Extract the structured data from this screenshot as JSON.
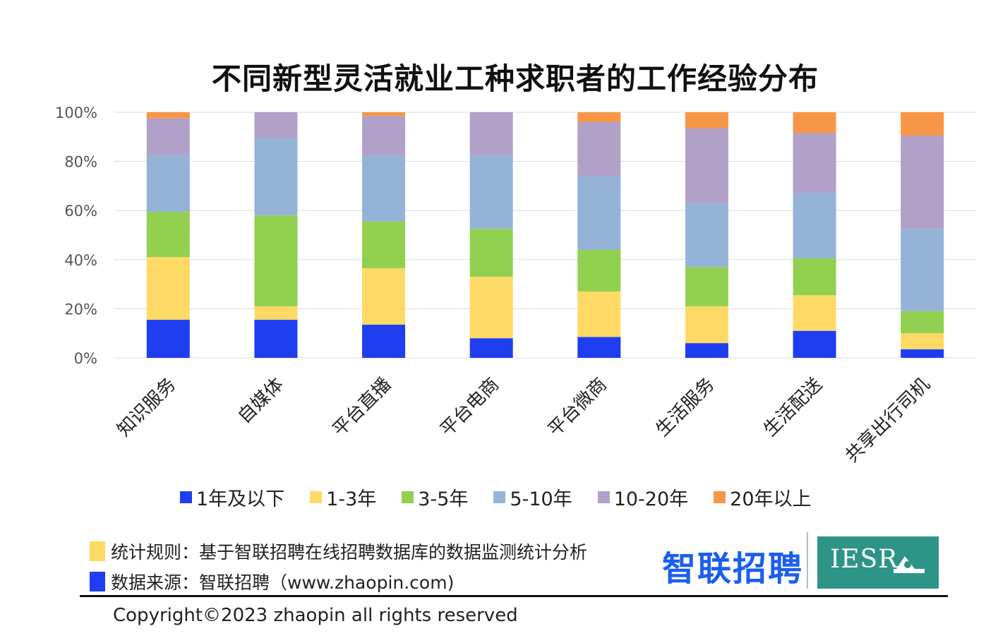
{
  "title": "不同新型灵活就业工种求职者的工作经验分布",
  "colors": {
    "1年及以下": "#1f3ef0",
    "1-3年": "#ffd966",
    "3-5年": "#92d050",
    "5-10年": "#95b3d7",
    "10-20年": "#b1a0c7",
    "20年以上": "#f79646"
  },
  "chart_data": {
    "type": "bar",
    "stacked": true,
    "title": "不同新型灵活就业工种求职者的工作经验分布",
    "xlabel": "",
    "ylabel": "",
    "ylim": [
      0,
      100
    ],
    "yticks": [
      "0%",
      "20%",
      "40%",
      "60%",
      "80%",
      "100%"
    ],
    "grid": true,
    "legend_position": "bottom",
    "categories": [
      "知识服务",
      "自媒体",
      "平台直播",
      "平台电商",
      "平台微商",
      "生活服务",
      "生活配送",
      "共享出行司机"
    ],
    "series": [
      {
        "name": "1年及以下",
        "values": [
          15.5,
          15.5,
          13.5,
          8,
          8.5,
          6,
          11,
          3.5
        ]
      },
      {
        "name": "1-3年",
        "values": [
          25.5,
          5.5,
          23,
          25,
          18.5,
          15,
          14.5,
          6.5
        ]
      },
      {
        "name": "3-5年",
        "values": [
          18.5,
          37,
          19,
          19.5,
          17,
          16,
          15,
          9
        ]
      },
      {
        "name": "5-10年",
        "values": [
          23,
          31.5,
          27,
          30,
          30,
          26,
          26.5,
          33.5
        ]
      },
      {
        "name": "10-20年",
        "values": [
          15,
          10.5,
          16,
          17.5,
          22,
          30.5,
          24.5,
          38
        ]
      },
      {
        "name": "20年以上",
        "values": [
          2.5,
          0,
          1.5,
          0,
          4,
          6.5,
          8.5,
          9.5
        ]
      }
    ]
  },
  "notes": {
    "rule": "统计规则：基于智联招聘在线招聘数据库的数据监测统计分析",
    "source": "数据来源：智联招聘（www.zhaopin.com)"
  },
  "logos": {
    "zhaopin": "智联招聘",
    "iesr": "IESR"
  },
  "copyright": "Copyright©2023 zhaopin all rights reserved"
}
